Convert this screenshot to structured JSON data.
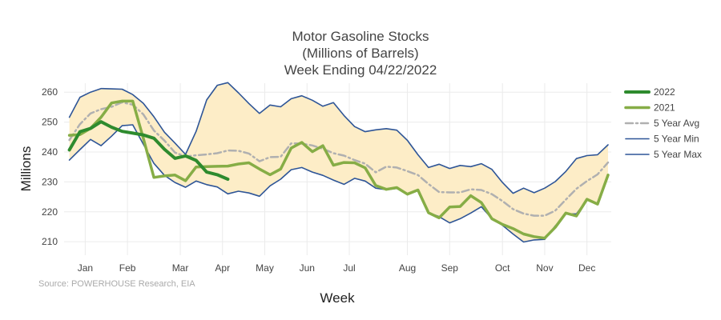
{
  "chart_data": {
    "type": "line",
    "title_lines": [
      "Motor Gasoline Stocks",
      "(Millions of Barrels)",
      "Week Ending 04/22/2022"
    ],
    "xlabel": "Week",
    "ylabel": "Millions",
    "source": "Source: POWERHOUSE Research, EIA",
    "x_range": [
      0.5,
      52.3
    ],
    "ylim": [
      205.5,
      263
    ],
    "yticks": [
      210,
      220,
      230,
      240,
      250,
      260
    ],
    "xticks": [
      {
        "label": "Jan",
        "week": 2.5
      },
      {
        "label": "Feb",
        "week": 6.5
      },
      {
        "label": "Mar",
        "week": 11.5
      },
      {
        "label": "Apr",
        "week": 15.5
      },
      {
        "label": "May",
        "week": 19.5
      },
      {
        "label": "Jun",
        "week": 23.5
      },
      {
        "label": "Jul",
        "week": 27.5
      },
      {
        "label": "Aug",
        "week": 33
      },
      {
        "label": "Sep",
        "week": 37
      },
      {
        "label": "Oct",
        "week": 42
      },
      {
        "label": "Nov",
        "week": 46
      },
      {
        "label": "Dec",
        "week": 50
      }
    ],
    "band": {
      "name": "5 Year Min/Max band",
      "fill": "#fdedc7",
      "min": [
        237.3,
        240.8,
        244.2,
        242.1,
        245.3,
        248.8,
        249.1,
        242.6,
        236.2,
        232.2,
        229.8,
        228.2,
        230.3,
        229.1,
        228.3,
        226.0,
        226.9,
        226.3,
        225.2,
        228.7,
        230.9,
        234.1,
        234.8,
        233.3,
        232.2,
        230.6,
        229.2,
        231.2,
        230.3,
        227.9,
        227.4,
        227.8,
        226.1,
        227.1,
        219.7,
        218.4,
        216.3,
        217.7,
        219.6,
        221.7,
        217.7,
        215.5,
        212.6,
        209.9,
        210.6,
        210.8,
        215.3,
        219.3,
        219.3,
        224.1,
        222.6,
        232.3
      ],
      "max": [
        251.6,
        258.3,
        260.0,
        261.2,
        261.1,
        261.0,
        259.2,
        256.3,
        251.8,
        246.6,
        243.0,
        239.2,
        246.9,
        257.4,
        262.3,
        263.2,
        259.8,
        256.2,
        252.9,
        255.7,
        255.1,
        257.8,
        258.8,
        257.3,
        255.3,
        256.5,
        252.2,
        248.5,
        246.8,
        247.4,
        247.8,
        247.3,
        243.9,
        239.1,
        234.8,
        235.9,
        234.5,
        235.5,
        235.1,
        236.1,
        234.2,
        229.8,
        226.2,
        227.9,
        226.4,
        227.9,
        230.1,
        233.5,
        237.8,
        238.8,
        239.1,
        242.4
      ]
    },
    "series": [
      {
        "name": "2022",
        "color": "#2e8b2e",
        "width": 4,
        "dash": "",
        "values": [
          240.7,
          246.8,
          247.9,
          250.1,
          248.3,
          246.9,
          246.3,
          245.7,
          244.6,
          240.9,
          237.9,
          238.7,
          237.2,
          233.3,
          232.4,
          230.9
        ]
      },
      {
        "name": "2021",
        "color": "#86ad46",
        "width": 3.5,
        "dash": "",
        "values": [
          245.6,
          245.8,
          247.9,
          251.6,
          256.4,
          257.0,
          257.0,
          244.6,
          231.5,
          232.0,
          232.3,
          230.4,
          235.0,
          235.1,
          235.2,
          235.3,
          236.0,
          236.4,
          234.3,
          232.4,
          234.3,
          241.3,
          243.2,
          240.1,
          242.1,
          235.6,
          236.5,
          236.4,
          234.7,
          228.8,
          227.5,
          228.1,
          225.9,
          227.3,
          219.7,
          218.0,
          221.6,
          221.8,
          225.4,
          223.1,
          217.7,
          215.8,
          214.4,
          212.6,
          211.7,
          211.2,
          214.8,
          219.6,
          218.6,
          224.2,
          222.6,
          232.3
        ]
      },
      {
        "name": "5 Year Avg",
        "color": "#b0b0b0",
        "width": 2.5,
        "dash": "9 4 2 4",
        "values": [
          244.0,
          249.3,
          252.9,
          254.3,
          255.1,
          256.6,
          255.8,
          252.6,
          247.2,
          243.8,
          239.8,
          238.5,
          238.9,
          239.2,
          239.6,
          240.5,
          240.4,
          239.5,
          236.9,
          238.3,
          238.4,
          242.9,
          242.8,
          242.2,
          241.1,
          239.6,
          238.8,
          237.3,
          236.1,
          233.2,
          235.1,
          234.8,
          233.6,
          232.3,
          229.3,
          226.6,
          226.5,
          226.5,
          227.5,
          227.3,
          225.9,
          223.6,
          220.9,
          219.4,
          218.7,
          218.7,
          220.4,
          224.1,
          227.7,
          230.3,
          232.5,
          236.5
        ]
      },
      {
        "name": "5 Year Min",
        "color": "#2e5597",
        "width": 1.6,
        "dash": "",
        "values": [
          237.3,
          240.8,
          244.2,
          242.1,
          245.3,
          248.8,
          249.1,
          242.6,
          236.2,
          232.2,
          229.8,
          228.2,
          230.3,
          229.1,
          228.3,
          226.0,
          226.9,
          226.3,
          225.2,
          228.7,
          230.9,
          234.1,
          234.8,
          233.3,
          232.2,
          230.6,
          229.2,
          231.2,
          230.3,
          227.9,
          227.4,
          227.8,
          226.1,
          227.1,
          219.7,
          218.4,
          216.3,
          217.7,
          219.6,
          221.7,
          217.7,
          215.5,
          212.6,
          209.9,
          210.6,
          210.8,
          215.3,
          219.3,
          219.3,
          224.1,
          222.6,
          232.3
        ]
      },
      {
        "name": "5 Year Max",
        "color": "#2e5597",
        "width": 1.6,
        "dash": "",
        "values": [
          251.6,
          258.3,
          260.0,
          261.2,
          261.1,
          261.0,
          259.2,
          256.3,
          251.8,
          246.6,
          243.0,
          239.2,
          246.9,
          257.4,
          262.3,
          263.2,
          259.8,
          256.2,
          252.9,
          255.7,
          255.1,
          257.8,
          258.8,
          257.3,
          255.3,
          256.5,
          252.2,
          248.5,
          246.8,
          247.4,
          247.8,
          247.3,
          243.9,
          239.1,
          234.8,
          235.9,
          234.5,
          235.5,
          235.1,
          236.1,
          234.2,
          229.8,
          226.2,
          227.9,
          226.4,
          227.9,
          230.1,
          233.5,
          237.8,
          238.8,
          239.1,
          242.4
        ]
      }
    ],
    "legend_position": "right",
    "grid": true
  }
}
